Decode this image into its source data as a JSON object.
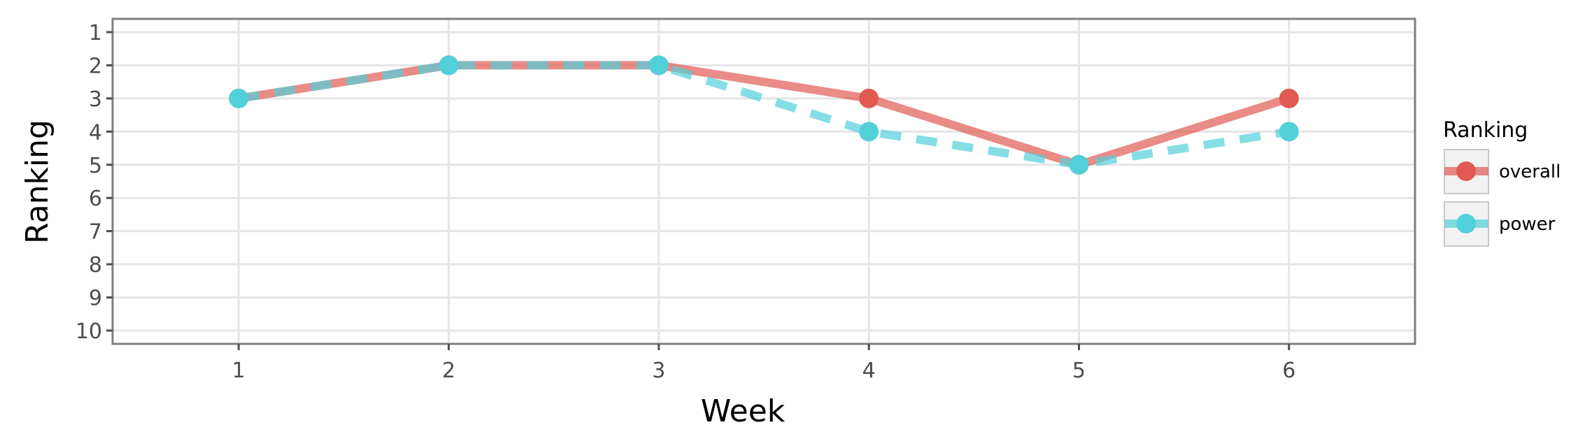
{
  "chart_data": {
    "type": "line",
    "xlabel": "Week",
    "ylabel": "Ranking",
    "x": [
      1,
      2,
      3,
      4,
      5,
      6
    ],
    "x_ticks": [
      "1",
      "2",
      "3",
      "4",
      "5",
      "6"
    ],
    "y_ticks": [
      "1",
      "2",
      "3",
      "4",
      "5",
      "6",
      "7",
      "8",
      "9",
      "10"
    ],
    "xlim": [
      0.4,
      6.6
    ],
    "ylim": [
      10.4,
      0.6
    ],
    "y_reversed": true,
    "grid": true,
    "legend": {
      "title": "Ranking",
      "position": "right"
    },
    "series": [
      {
        "name": "overall",
        "values": [
          3,
          2,
          2,
          3,
          5,
          3
        ],
        "color": "#e05a52",
        "linestyle": "solid"
      },
      {
        "name": "power",
        "values": [
          3,
          2,
          2,
          4,
          5,
          4
        ],
        "color": "#52d0da",
        "linestyle": "dashed"
      }
    ]
  }
}
